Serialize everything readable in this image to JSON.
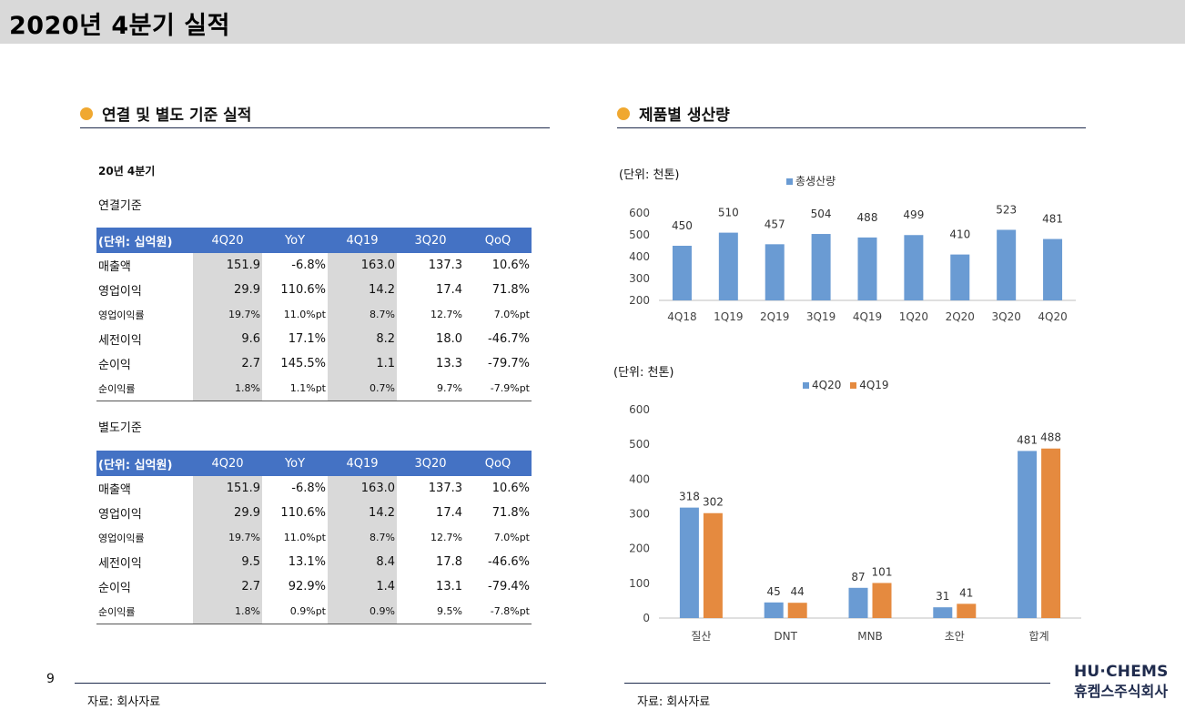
{
  "title": "2020년 4분기 실적",
  "left": {
    "heading": "연결 및 별도 기준 실적",
    "period": "20년 4분기",
    "consolidated_label": "연결기준",
    "separate_label": "별도기준",
    "columns": [
      "(단위: 십억원)",
      "4Q20",
      "YoY",
      "4Q19",
      "3Q20",
      "QoQ"
    ],
    "consolidated_rows": [
      [
        "매출액",
        "151.9",
        "-6.8%",
        "163.0",
        "137.3",
        "10.6%"
      ],
      [
        "영업이익",
        "29.9",
        "110.6%",
        "14.2",
        "17.4",
        "71.8%"
      ],
      [
        "영업이익률",
        "19.7%",
        "11.0%pt",
        "8.7%",
        "12.7%",
        "7.0%pt"
      ],
      [
        "세전이익",
        "9.6",
        "17.1%",
        "8.2",
        "18.0",
        "-46.7%"
      ],
      [
        "순이익",
        "2.7",
        "145.5%",
        "1.1",
        "13.3",
        "-79.7%"
      ],
      [
        "순이익률",
        "1.8%",
        "1.1%pt",
        "0.7%",
        "9.7%",
        "-7.9%pt"
      ]
    ],
    "separate_rows": [
      [
        "매출액",
        "151.9",
        "-6.8%",
        "163.0",
        "137.3",
        "10.6%"
      ],
      [
        "영업이익",
        "29.9",
        "110.6%",
        "14.2",
        "17.4",
        "71.8%"
      ],
      [
        "영업이익률",
        "19.7%",
        "11.0%pt",
        "8.7%",
        "12.7%",
        "7.0%pt"
      ],
      [
        "세전이익",
        "9.5",
        "13.1%",
        "8.4",
        "17.8",
        "-46.6%"
      ],
      [
        "순이익",
        "2.7",
        "92.9%",
        "1.4",
        "13.1",
        "-79.4%"
      ],
      [
        "순이익률",
        "1.8%",
        "0.9%pt",
        "0.9%",
        "9.5%",
        "-7.8%pt"
      ]
    ],
    "source": "자료: 회사자료"
  },
  "right": {
    "heading": "제품별 생산량",
    "source": "자료: 회사자료"
  },
  "chart_data": [
    {
      "type": "bar",
      "unit_label": "(단위: 천톤)",
      "categories": [
        "4Q18",
        "1Q19",
        "2Q19",
        "3Q19",
        "4Q19",
        "1Q20",
        "2Q20",
        "3Q20",
        "4Q20"
      ],
      "series": [
        {
          "name": "총생산량",
          "values": [
            450,
            510,
            457,
            504,
            488,
            499,
            410,
            523,
            481
          ],
          "color": "#6a9bd3"
        }
      ],
      "yticks": [
        200,
        300,
        400,
        500,
        600
      ],
      "ylim": [
        200,
        600
      ],
      "legend": "top-center",
      "grid": false
    },
    {
      "type": "bar",
      "unit_label": "(단위: 천톤)",
      "categories": [
        "질산",
        "DNT",
        "MNB",
        "초안",
        "합계"
      ],
      "series": [
        {
          "name": "4Q20",
          "values": [
            318,
            45,
            87,
            31,
            481
          ],
          "color": "#6a9bd3"
        },
        {
          "name": "4Q19",
          "values": [
            302,
            44,
            101,
            41,
            488
          ],
          "color": "#e58a3f"
        }
      ],
      "yticks": [
        0,
        100,
        200,
        300,
        400,
        500,
        600
      ],
      "ylim": [
        0,
        600
      ],
      "legend": "top-center",
      "grid": false
    }
  ],
  "page_number": "9",
  "logo": {
    "line1": "HU·CHEMS",
    "line2": "휴켐스주식회사"
  }
}
